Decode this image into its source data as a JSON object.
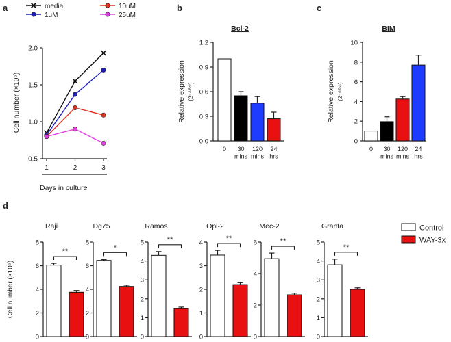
{
  "panel_labels": {
    "a": "a",
    "b": "b",
    "c": "c",
    "d": "d"
  },
  "chart_data": [
    {
      "id": "a",
      "type": "line",
      "title": "",
      "xlabel": "Days in culture",
      "ylabel": "Cell number (×10⁶)",
      "x": [
        1,
        2,
        3
      ],
      "xticks": [
        "1",
        "2",
        "3"
      ],
      "ylim": [
        0.5,
        2.0
      ],
      "yticks": [
        "0.5",
        "1.0",
        "1.5",
        "2.0"
      ],
      "series": [
        {
          "name": "media",
          "values": [
            0.85,
            1.55,
            1.93
          ],
          "color": "#111111",
          "marker": "x"
        },
        {
          "name": "1uM",
          "values": [
            0.82,
            1.37,
            1.7
          ],
          "color": "#1f1fbf",
          "marker": "o"
        },
        {
          "name": "10uM",
          "values": [
            0.8,
            1.19,
            1.09
          ],
          "color": "#e03020",
          "marker": "o"
        },
        {
          "name": "25uM",
          "values": [
            0.8,
            0.9,
            0.71
          ],
          "color": "#e040e0",
          "marker": "o"
        }
      ]
    },
    {
      "id": "b",
      "type": "bar",
      "title": "Bcl-2",
      "ylabel": "Relative expression",
      "ylabel2": "(2⁻ᐞᐞᶜᵗ)",
      "categories": [
        "0",
        "30 mins",
        "120 mins",
        "24 hrs"
      ],
      "values": [
        1.0,
        0.55,
        0.46,
        0.27
      ],
      "errors": [
        0.0,
        0.05,
        0.08,
        0.08
      ],
      "colors": [
        "#ffffff",
        "#000000",
        "#1e3cff",
        "#e81010"
      ],
      "ylim": [
        0,
        1.2
      ],
      "yticks": [
        "0.0",
        "0.3",
        "0.6",
        "0.9",
        "1.2"
      ]
    },
    {
      "id": "c",
      "type": "bar",
      "title": "BIM",
      "ylabel": "Relative expression",
      "ylabel2": "(2⁻ᐞᐞᶜᵗ)",
      "categories": [
        "0",
        "30 mins",
        "120 mins",
        "24 hrs"
      ],
      "values": [
        1.0,
        1.95,
        4.25,
        7.7
      ],
      "errors": [
        0.0,
        0.5,
        0.25,
        1.0
      ],
      "colors": [
        "#ffffff",
        "#000000",
        "#e81010",
        "#1e3cff"
      ],
      "ylim": [
        0,
        10
      ],
      "yticks": [
        "0",
        "2",
        "4",
        "6",
        "8",
        "10"
      ]
    },
    {
      "id": "d",
      "type": "bar",
      "ylabel": "Cell number (×10⁶)",
      "legend": [
        {
          "name": "Control",
          "color": "#ffffff"
        },
        {
          "name": "WAY-3x",
          "color": "#e81010"
        }
      ],
      "subplots": [
        {
          "title": "Raji",
          "values": [
            6.05,
            3.75
          ],
          "errors": [
            0.15,
            0.15
          ],
          "ylim": [
            0,
            8
          ],
          "yticks": [
            "0",
            "2",
            "4",
            "6",
            "8"
          ],
          "sig": "**"
        },
        {
          "title": "Dg75",
          "values": [
            6.45,
            4.25
          ],
          "errors": [
            0.08,
            0.1
          ],
          "ylim": [
            0,
            8
          ],
          "yticks": [
            "0",
            "2",
            "4",
            "6",
            "8"
          ],
          "sig": "*"
        },
        {
          "title": "Ramos",
          "values": [
            4.3,
            1.48
          ],
          "errors": [
            0.2,
            0.08
          ],
          "ylim": [
            0,
            5
          ],
          "yticks": [
            "0",
            "1",
            "2",
            "3",
            "4",
            "5"
          ],
          "sig": "**"
        },
        {
          "title": "Opl-2",
          "values": [
            3.45,
            2.2
          ],
          "errors": [
            0.2,
            0.08
          ],
          "ylim": [
            0,
            4
          ],
          "yticks": [
            "0",
            "1",
            "2",
            "3",
            "4"
          ],
          "sig": "**"
        },
        {
          "title": "Mec-2",
          "values": [
            4.95,
            2.65
          ],
          "errors": [
            0.35,
            0.1
          ],
          "ylim": [
            0,
            6
          ],
          "yticks": [
            "0",
            "2",
            "4",
            "6"
          ],
          "sig": "**"
        },
        {
          "title": "Granta",
          "values": [
            3.8,
            2.5
          ],
          "errors": [
            0.3,
            0.08
          ],
          "ylim": [
            0,
            5
          ],
          "yticks": [
            "0",
            "1",
            "2",
            "3",
            "4",
            "5"
          ],
          "sig": "**"
        }
      ]
    }
  ]
}
